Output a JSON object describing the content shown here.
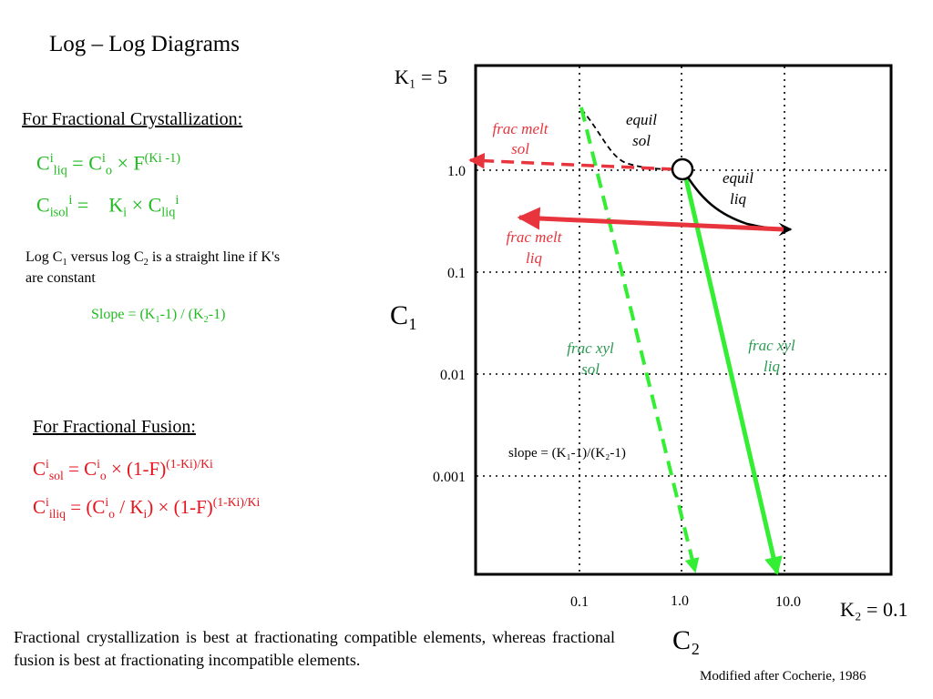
{
  "title": "Log – Log Diagrams",
  "frac_cryst": {
    "heading": "For Fractional Crystallization:",
    "eq1": {
      "base": "C",
      "sup": "i",
      "sub": "liq",
      "eq": " = ",
      "base2": "C",
      "sup2": "i",
      "sub2": "o",
      "op": " × F",
      "exp": "(Ki -1)"
    },
    "eq2": {
      "base": "C",
      "sub": "isol",
      "sup": "i",
      "eq": " = ",
      "k": "K",
      "ksub": "i",
      "op": " × ",
      "base2": "C",
      "sub2": "liq",
      "sup2": "i"
    }
  },
  "note": {
    "part1": "Log C",
    "sub1": "1",
    "part2": " versus log C",
    "sub2": "2",
    "part3": " is a straight line if K's",
    "line2": "are constant"
  },
  "slope": {
    "part1": "Slope = (K",
    "sub1": "1",
    "part2": "-1) / (K",
    "sub2": "2",
    "part3": "-1)"
  },
  "frac_fusion": {
    "heading": "For Fractional Fusion:",
    "eq1": {
      "base": "C",
      "sup": "i",
      "sub": "sol",
      "eq": " = ",
      "base2": "C",
      "sup2": "i",
      "sub2": "o",
      "op": " × (1-F)",
      "exp": "(1-Ki)/Ki"
    },
    "eq2": {
      "base": "C",
      "sup": "i",
      "sub": "iliq",
      "eq": " = (",
      "base2": "C",
      "sup2": "i",
      "sub2": "o",
      "op": " / K",
      "ksub": "i",
      "op2": ") × (1-F)",
      "exp": "(1-Ki)/Ki"
    }
  },
  "diagram": {
    "k1_label": "K₁ = 5",
    "k2_label": "K₂ = 0.1",
    "y_axis_label": "C₁",
    "x_axis_label": "C₂",
    "y_ticks": [
      "1.0",
      "0.1",
      "0.01",
      "0.001"
    ],
    "x_ticks": [
      "0.1",
      "1.0",
      "10.0"
    ],
    "labels": {
      "frac_melt_sol": [
        "frac melt",
        "sol"
      ],
      "equil_sol": [
        "equil",
        "sol"
      ],
      "equil_liq": [
        "equil",
        "liq"
      ],
      "frac_melt_liq": [
        "frac melt",
        "liq"
      ],
      "frac_xyl_sol": [
        "frac xyl",
        "sol"
      ],
      "frac_xyl_liq": [
        "frac xyl",
        "liq"
      ]
    },
    "slope_text": "slope = (K₁-1)/(K₂-1)",
    "colors": {
      "red": "#e8343c",
      "green": "#33ee33",
      "black": "#000000",
      "label_red": "#e8343c",
      "label_green": "#2a9a52"
    }
  },
  "bottom_text": "Fractional crystallization is best at fractionating compatible elements, whereas fractional fusion is best at fractionating incompatible elements.",
  "credit": "Modified after Cocherie, 1986"
}
